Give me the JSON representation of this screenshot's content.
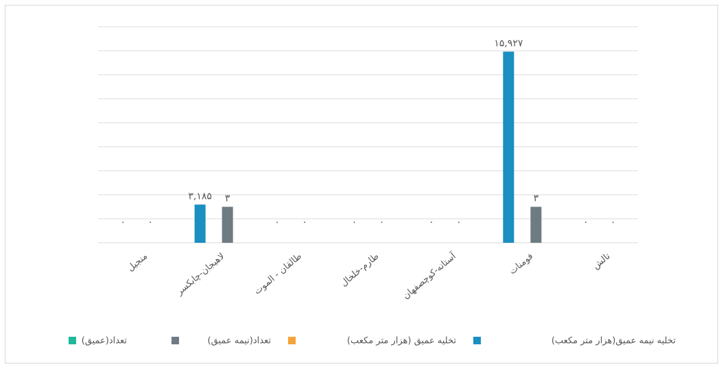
{
  "chart_data": {
    "type": "bar",
    "categories": [
      "منجیل",
      "لاهیجان-چابکسر",
      "طالقان - الموت",
      "طارم-خلخال",
      "آستانه-کوچصفهان",
      "فومنات",
      "تالش"
    ],
    "series": [
      {
        "name": "تخلیه نیمه عمیق(هزار متر مکعب)",
        "color": "#1a8fc0",
        "values": [
          0,
          3185,
          0,
          0,
          0,
          15927,
          0
        ],
        "value_labels": [
          "٠",
          "۳,۱۸۵",
          "٠",
          "٠",
          "٠",
          "۱۵,۹۲۷",
          "٠"
        ]
      },
      {
        "name": "تخلیه عمیق (هزار متر مکعب)",
        "color": "#f5a33b",
        "values": [
          null,
          null,
          null,
          null,
          null,
          null,
          null
        ]
      },
      {
        "name": "تعداد(نیمه عمیق)",
        "color": "#6f7b82",
        "axis": "y2",
        "values": [
          0,
          3,
          0,
          0,
          0,
          3,
          0
        ],
        "value_labels": [
          "٠",
          "۳",
          "٠",
          "٠",
          "٠",
          "۳",
          "٠"
        ]
      },
      {
        "name": "تعداد(عمیق)",
        "color": "#1fb89a",
        "axis": "y2",
        "values": [
          null,
          null,
          null,
          null,
          null,
          null,
          null
        ]
      }
    ],
    "ylim": [
      0,
      18000
    ],
    "yticks": [
      0,
      2000,
      4000,
      6000,
      8000,
      10000,
      12000,
      14000,
      16000,
      18000
    ],
    "y2lim": [
      0,
      18
    ],
    "grid": true,
    "legend": "bottom"
  }
}
